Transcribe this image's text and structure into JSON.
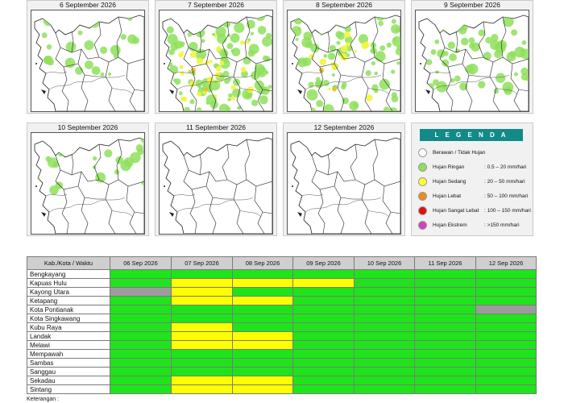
{
  "maps": [
    {
      "title": "6 September 2026"
    },
    {
      "title": "7 September 2026"
    },
    {
      "title": "8 September 2026"
    },
    {
      "title": "9 September 2026"
    },
    {
      "title": "10 September 2026"
    },
    {
      "title": "11 September 2026"
    },
    {
      "title": "12 September 2026"
    }
  ],
  "legend": {
    "title": "L E G E N D A",
    "items": [
      {
        "label": "Berawan / Tidak Hujan",
        "range": "",
        "color": "#ffffff"
      },
      {
        "label": "Hujan Ringan",
        "range": ": 0.5 – 20 mm/hari",
        "color": "#8ee05a"
      },
      {
        "label": "Hujan Sedang",
        "range": ": 20 – 50 mm/hari",
        "color": "#ffff33"
      },
      {
        "label": "Hujan Lebat",
        "range": ": 50 – 100 mm/hari",
        "color": "#f08a1c"
      },
      {
        "label": "Hujan Sangat Lebat",
        "range": ": 100 – 150 mm/hari",
        "color": "#e01010"
      },
      {
        "label": "Hujan Ekstrem",
        "range": ": >150 mm/hari",
        "color": "#cc44bb"
      }
    ]
  },
  "table": {
    "header": [
      "Kab./Kota / Waktu",
      "06 Sep 2026",
      "07 Sep 2026",
      "08 Sep 2026",
      "09 Sep 2026",
      "10 Sep 2026",
      "11 Sep 2026",
      "12 Sep 2026"
    ],
    "status_colors": {
      "green": "#1fe41b",
      "yellow": "#ffff00",
      "grey": "#9c9c9c"
    },
    "rows": [
      {
        "name": "Bengkayang",
        "cells": [
          "green",
          "green",
          "green",
          "green",
          "green",
          "green",
          "green"
        ]
      },
      {
        "name": "Kapuas Hulu",
        "cells": [
          "green",
          "yellow",
          "yellow",
          "yellow",
          "green",
          "green",
          "green"
        ]
      },
      {
        "name": "Kayong Utara",
        "cells": [
          "grey",
          "yellow",
          "green",
          "green",
          "green",
          "green",
          "green"
        ]
      },
      {
        "name": "Ketapang",
        "cells": [
          "green",
          "yellow",
          "yellow",
          "green",
          "green",
          "green",
          "green"
        ]
      },
      {
        "name": "Kota Pontianak",
        "cells": [
          "green",
          "green",
          "green",
          "green",
          "green",
          "green",
          "grey"
        ]
      },
      {
        "name": "Kota Singkawang",
        "cells": [
          "green",
          "green",
          "green",
          "green",
          "green",
          "green",
          "green"
        ]
      },
      {
        "name": "Kubu Raya",
        "cells": [
          "green",
          "yellow",
          "green",
          "green",
          "green",
          "green",
          "green"
        ]
      },
      {
        "name": "Landak",
        "cells": [
          "green",
          "yellow",
          "yellow",
          "green",
          "green",
          "green",
          "green"
        ]
      },
      {
        "name": "Melawi",
        "cells": [
          "green",
          "yellow",
          "yellow",
          "green",
          "green",
          "green",
          "green"
        ]
      },
      {
        "name": "Mempawah",
        "cells": [
          "green",
          "green",
          "green",
          "green",
          "green",
          "green",
          "green"
        ]
      },
      {
        "name": "Sambas",
        "cells": [
          "green",
          "green",
          "green",
          "green",
          "green",
          "green",
          "green"
        ]
      },
      {
        "name": "Sanggau",
        "cells": [
          "green",
          "green",
          "green",
          "green",
          "green",
          "green",
          "green"
        ]
      },
      {
        "name": "Sekadau",
        "cells": [
          "green",
          "yellow",
          "yellow",
          "green",
          "green",
          "green",
          "green"
        ]
      },
      {
        "name": "Sintang",
        "cells": [
          "green",
          "yellow",
          "yellow",
          "green",
          "green",
          "green",
          "green"
        ]
      }
    ]
  },
  "note": "Keterangan :"
}
